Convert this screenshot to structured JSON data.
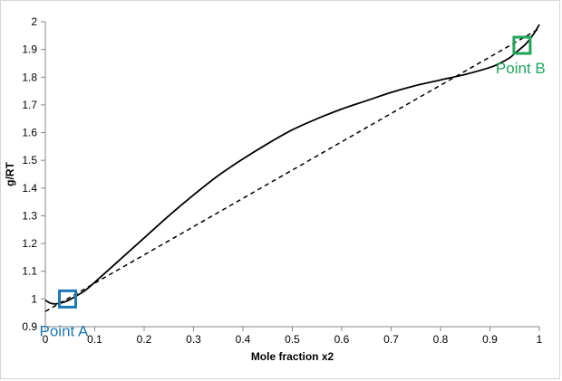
{
  "chart_data": {
    "type": "line",
    "title": "",
    "xlabel": "Mole fraction x2",
    "ylabel": "g/RT",
    "xlim": [
      0,
      1
    ],
    "ylim": [
      0.9,
      2
    ],
    "xticks": [
      0,
      0.1,
      0.2,
      0.3,
      0.4,
      0.5,
      0.6,
      0.7,
      0.8,
      0.9,
      1
    ],
    "xtick_labels": [
      "0",
      "0.1",
      "0.2",
      "0.3",
      "0.4",
      "0.5",
      "0.6",
      "0.7",
      "0.8",
      "0.9",
      "1"
    ],
    "yticks": [
      0.9,
      1,
      1.1,
      1.2,
      1.3,
      1.4,
      1.5,
      1.6,
      1.7,
      1.8,
      1.9,
      2
    ],
    "ytick_labels": [
      "0.9",
      "1",
      "1.1",
      "1.2",
      "1.3",
      "1.4",
      "1.5",
      "1.6",
      "1.7",
      "1.8",
      "1.9",
      "2"
    ],
    "grid": false,
    "series": [
      {
        "style": "solid",
        "color": "#000000",
        "x": [
          0.0,
          0.01,
          0.02,
          0.03,
          0.04,
          0.05,
          0.06,
          0.08,
          0.1,
          0.15,
          0.2,
          0.25,
          0.3,
          0.35,
          0.4,
          0.45,
          0.5,
          0.55,
          0.6,
          0.65,
          0.7,
          0.75,
          0.8,
          0.85,
          0.9,
          0.92,
          0.94,
          0.95,
          0.96,
          0.97,
          0.98,
          0.99,
          1.0
        ],
        "y": [
          0.995,
          0.985,
          0.982,
          0.985,
          0.99,
          0.998,
          1.008,
          1.03,
          1.06,
          1.14,
          1.22,
          1.3,
          1.375,
          1.445,
          1.505,
          1.56,
          1.61,
          1.65,
          1.685,
          1.715,
          1.745,
          1.77,
          1.79,
          1.81,
          1.835,
          1.85,
          1.87,
          1.885,
          1.9,
          1.915,
          1.935,
          1.96,
          1.99
        ]
      },
      {
        "style": "dashed",
        "color": "#000000",
        "x": [
          0,
          1
        ],
        "y": [
          0.955,
          1.975
        ]
      }
    ],
    "annotations": [
      {
        "text": "Point A",
        "x": 0.045,
        "y": 1.0,
        "color": "#1f77b4"
      },
      {
        "text": "Point B",
        "x": 0.965,
        "y": 1.915,
        "color": "#22a55b"
      }
    ]
  }
}
